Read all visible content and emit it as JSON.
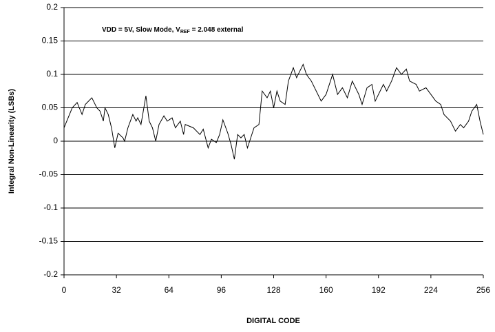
{
  "chart_data": {
    "type": "line",
    "annotation": {
      "before": "VDD = 5V, Slow Mode, V",
      "sub": "REF",
      "after": " = 2.048 external"
    },
    "xlabel": "DIGITAL CODE",
    "ylabel": "Integral Non-Linearity (LSBs)",
    "xlim": [
      0,
      256
    ],
    "xticks": [
      0,
      32,
      64,
      96,
      128,
      160,
      192,
      224,
      256
    ],
    "ylim": [
      -0.2,
      0.2
    ],
    "yticks": [
      0.2,
      0.15,
      0.1,
      0.05,
      0,
      -0.05,
      -0.1,
      -0.15,
      -0.2
    ],
    "grid": true,
    "color": "#000000",
    "x": [
      0,
      5,
      8,
      11,
      13,
      17,
      20,
      22,
      24,
      25,
      27,
      29,
      31,
      33,
      36,
      37,
      39,
      42,
      44,
      45,
      47,
      50,
      52,
      54,
      56,
      58,
      61,
      63,
      66,
      68,
      71,
      73,
      74,
      79,
      83,
      85,
      88,
      90,
      93,
      95,
      97,
      100,
      102,
      104,
      106,
      108,
      110,
      112,
      114,
      116,
      119,
      121,
      124,
      126,
      128,
      130,
      132,
      135,
      137,
      140,
      142,
      146,
      148,
      151,
      154,
      157,
      160,
      164,
      167,
      170,
      173,
      176,
      180,
      182,
      185,
      188,
      190,
      195,
      197,
      200,
      203,
      206,
      209,
      211,
      215,
      217,
      221,
      224,
      227,
      230,
      232,
      236,
      239,
      242,
      244,
      247,
      249,
      252,
      254,
      256
    ],
    "values": [
      0.02,
      0.05,
      0.058,
      0.04,
      0.055,
      0.065,
      0.05,
      0.045,
      0.03,
      0.05,
      0.04,
      0.02,
      -0.01,
      0.012,
      0.005,
      0.0,
      0.02,
      0.04,
      0.03,
      0.035,
      0.025,
      0.068,
      0.03,
      0.02,
      0.0,
      0.025,
      0.038,
      0.03,
      0.035,
      0.02,
      0.03,
      0.01,
      0.025,
      0.02,
      0.01,
      0.018,
      -0.01,
      0.003,
      -0.002,
      0.01,
      0.032,
      0.012,
      -0.005,
      -0.027,
      0.01,
      0.005,
      0.01,
      -0.01,
      0.005,
      0.02,
      0.025,
      0.075,
      0.065,
      0.075,
      0.05,
      0.075,
      0.06,
      0.055,
      0.09,
      0.11,
      0.095,
      0.115,
      0.1,
      0.09,
      0.075,
      0.06,
      0.07,
      0.1,
      0.07,
      0.08,
      0.065,
      0.09,
      0.07,
      0.055,
      0.08,
      0.085,
      0.06,
      0.085,
      0.075,
      0.09,
      0.11,
      0.1,
      0.108,
      0.09,
      0.085,
      0.075,
      0.08,
      0.07,
      0.06,
      0.055,
      0.04,
      0.03,
      0.015,
      0.025,
      0.02,
      0.03,
      0.045,
      0.055,
      0.03,
      0.01
    ]
  }
}
